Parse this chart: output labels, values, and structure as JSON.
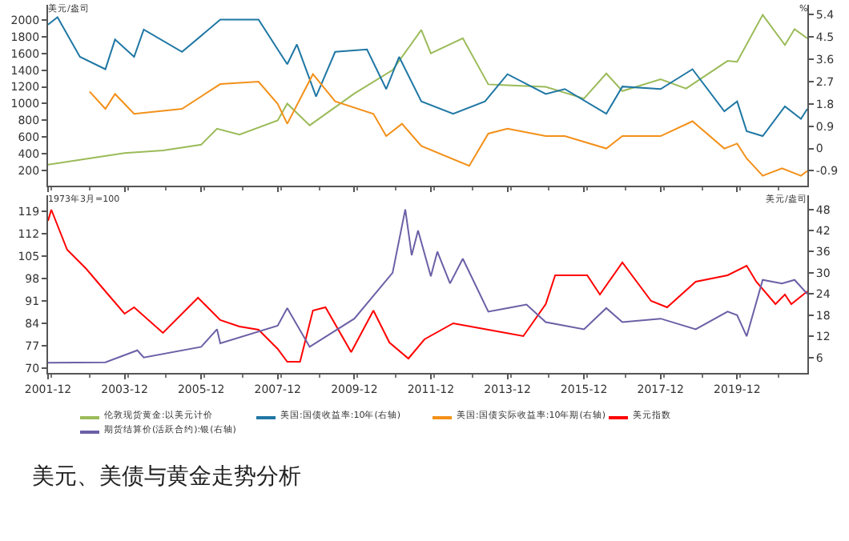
{
  "chart_data": [
    {
      "type": "line",
      "ylabel": "美元/盎司",
      "y2label": "%",
      "xlim": [
        "2001-12",
        "2021-10"
      ],
      "xticks": [
        {
          "value": "2001-12",
          "label": null
        },
        {
          "value": "2003-12",
          "label": null
        },
        {
          "value": "2005-12",
          "label": null
        },
        {
          "value": "2007-12",
          "label": null
        },
        {
          "value": "2009-12",
          "label": null
        },
        {
          "value": "2011-12",
          "label": null
        },
        {
          "value": "2013-12",
          "label": null
        },
        {
          "value": "2015-12",
          "label": null
        },
        {
          "value": "2017-12",
          "label": null
        },
        {
          "value": "2019-12",
          "label": null
        }
      ],
      "ylim": [
        20,
        2180
      ],
      "yticks": [
        200,
        400,
        600,
        800,
        1000,
        1200,
        1400,
        1600,
        1800,
        2000
      ],
      "y2lim": [
        -1.5,
        5.8
      ],
      "y2ticks": [
        -0.9,
        0,
        0.9,
        1.8,
        2.7,
        3.6,
        4.5,
        5.4
      ],
      "tick_labels": "y",
      "legend": "bottom",
      "grid": false,
      "series": [
        {
          "name": "伦敦现货黄金:以美元计价",
          "color": "#9bbb59",
          "x": [
            "2001-12",
            "2002-12",
            "2003-12",
            "2004-12",
            "2005-12",
            "2006-05",
            "2006-12",
            "2007-12",
            "2008-03",
            "2008-10",
            "2009-12",
            "2010-12",
            "2011-09",
            "2011-12",
            "2012-10",
            "2013-06",
            "2013-12",
            "2014-12",
            "2015-12",
            "2016-07",
            "2016-12",
            "2017-12",
            "2018-08",
            "2019-09",
            "2019-12",
            "2020-08",
            "2021-03",
            "2021-06",
            "2021-10"
          ],
          "values": [
            270,
            340,
            410,
            440,
            510,
            700,
            630,
            800,
            1000,
            740,
            1120,
            1400,
            1880,
            1600,
            1780,
            1230,
            1220,
            1200,
            1060,
            1360,
            1150,
            1290,
            1180,
            1510,
            1500,
            2060,
            1700,
            1890,
            1780
          ]
        },
        {
          "name": "美国:国债收益率:10年(右轴)",
          "color": "#1f77a4",
          "axis": "y2",
          "x": [
            "2001-12",
            "2002-03",
            "2002-10",
            "2003-06",
            "2003-09",
            "2004-03",
            "2004-06",
            "2005-06",
            "2006-06",
            "2007-06",
            "2008-03",
            "2008-06",
            "2008-12",
            "2009-06",
            "2010-04",
            "2010-10",
            "2011-02",
            "2011-09",
            "2012-07",
            "2013-05",
            "2013-12",
            "2014-12",
            "2015-06",
            "2016-07",
            "2016-12",
            "2017-12",
            "2018-10",
            "2019-08",
            "2019-12",
            "2020-03",
            "2020-08",
            "2021-03",
            "2021-08",
            "2021-10"
          ],
          "values": [
            5.0,
            5.3,
            3.7,
            3.2,
            4.4,
            3.7,
            4.8,
            3.9,
            5.2,
            5.2,
            3.4,
            4.2,
            2.1,
            3.9,
            4.0,
            2.4,
            3.7,
            1.9,
            1.4,
            1.9,
            3.0,
            2.2,
            2.4,
            1.4,
            2.5,
            2.4,
            3.2,
            1.5,
            1.9,
            0.7,
            0.5,
            1.7,
            1.2,
            1.6
          ]
        },
        {
          "name": "美国:国债实际收益率:10年期(右轴)",
          "color": "#f39019",
          "axis": "y2",
          "x": [
            "2003-01",
            "2003-06",
            "2003-09",
            "2004-03",
            "2005-06",
            "2006-06",
            "2007-06",
            "2007-12",
            "2008-03",
            "2008-11",
            "2009-06",
            "2010-06",
            "2010-10",
            "2011-03",
            "2011-09",
            "2012-12",
            "2013-06",
            "2013-12",
            "2014-12",
            "2015-06",
            "2016-07",
            "2016-12",
            "2017-12",
            "2018-10",
            "2019-08",
            "2019-12",
            "2020-03",
            "2020-08",
            "2021-02",
            "2021-08",
            "2021-10"
          ],
          "values": [
            2.3,
            1.6,
            2.2,
            1.4,
            1.6,
            2.6,
            2.7,
            1.8,
            1.0,
            3.0,
            1.9,
            1.4,
            0.5,
            1.0,
            0.1,
            -0.7,
            0.6,
            0.8,
            0.5,
            0.5,
            0.0,
            0.5,
            0.5,
            1.1,
            0.0,
            0.2,
            -0.4,
            -1.1,
            -0.8,
            -1.1,
            -0.9
          ]
        }
      ]
    },
    {
      "type": "line",
      "ylabel": "1973年3月=100",
      "y2label": "美元/盎司",
      "xlim": [
        "2001-12",
        "2021-10"
      ],
      "xticks": [
        {
          "value": "2001-12",
          "label": "2001-12"
        },
        {
          "value": "2003-12",
          "label": "2003-12"
        },
        {
          "value": "2005-12",
          "label": "2005-12"
        },
        {
          "value": "2007-12",
          "label": "2007-12"
        },
        {
          "value": "2009-12",
          "label": "2009-12"
        },
        {
          "value": "2011-12",
          "label": "2011-12"
        },
        {
          "value": "2013-12",
          "label": "2013-12"
        },
        {
          "value": "2015-12",
          "label": "2015-12"
        },
        {
          "value": "2017-12",
          "label": "2017-12"
        },
        {
          "value": "2019-12",
          "label": "2019-12"
        }
      ],
      "ylim": [
        68.5,
        124
      ],
      "yticks": [
        70,
        77,
        84,
        91,
        98,
        105,
        112,
        119
      ],
      "y2lim": [
        1.6,
        52
      ],
      "y2ticks": [
        6,
        12,
        18,
        24,
        30,
        36,
        42,
        48
      ],
      "legend": "bottom",
      "grid": false,
      "annotations": [
        "美元、美债与黄金走势分析"
      ],
      "series": [
        {
          "name": "美元指数",
          "color": "#ff0000",
          "x": [
            "2001-12",
            "2002-01",
            "2002-06",
            "2002-12",
            "2003-06",
            "2003-12",
            "2004-03",
            "2004-12",
            "2005-11",
            "2006-06",
            "2006-12",
            "2007-06",
            "2007-12",
            "2008-03",
            "2008-07",
            "2008-11",
            "2009-03",
            "2009-11",
            "2010-06",
            "2010-11",
            "2011-05",
            "2011-10",
            "2012-07",
            "2013-06",
            "2014-05",
            "2014-12",
            "2015-03",
            "2016-01",
            "2016-05",
            "2016-12",
            "2017-09",
            "2018-02",
            "2018-11",
            "2019-09",
            "2020-03",
            "2020-06",
            "2020-12",
            "2021-03",
            "2021-05",
            "2021-10"
          ],
          "values": [
            116,
            119.5,
            107,
            101,
            94,
            87,
            89,
            81,
            92,
            85,
            83,
            82,
            76,
            72,
            72,
            88,
            89,
            75,
            88,
            78,
            73,
            79,
            84,
            82,
            80,
            90,
            99,
            99,
            93,
            103,
            91,
            89,
            97,
            99,
            102,
            97,
            90,
            93,
            90,
            94
          ]
        },
        {
          "name": "期货结算价(活跃合约):银(右轴)",
          "color": "#6c5fa6",
          "axis": "y2",
          "x": [
            "2001-12",
            "2003-06",
            "2004-04",
            "2004-06",
            "2005-12",
            "2006-05",
            "2006-06",
            "2007-12",
            "2008-03",
            "2008-10",
            "2009-12",
            "2010-12",
            "2011-04",
            "2011-06",
            "2011-08",
            "2011-12",
            "2012-02",
            "2012-06",
            "2012-10",
            "2013-06",
            "2013-12",
            "2014-06",
            "2014-12",
            "2015-12",
            "2016-07",
            "2016-12",
            "2017-12",
            "2018-11",
            "2019-09",
            "2019-12",
            "2020-03",
            "2020-08",
            "2021-02",
            "2021-06",
            "2021-10"
          ],
          "values": [
            4.5,
            4.6,
            8,
            6,
            9,
            14,
            10,
            15,
            20,
            9,
            17,
            30,
            48,
            35,
            42,
            29,
            36,
            27,
            34,
            19,
            20,
            21,
            16,
            14,
            20,
            16,
            17,
            14,
            19,
            18,
            12,
            28,
            27,
            28,
            24
          ]
        }
      ]
    }
  ]
}
